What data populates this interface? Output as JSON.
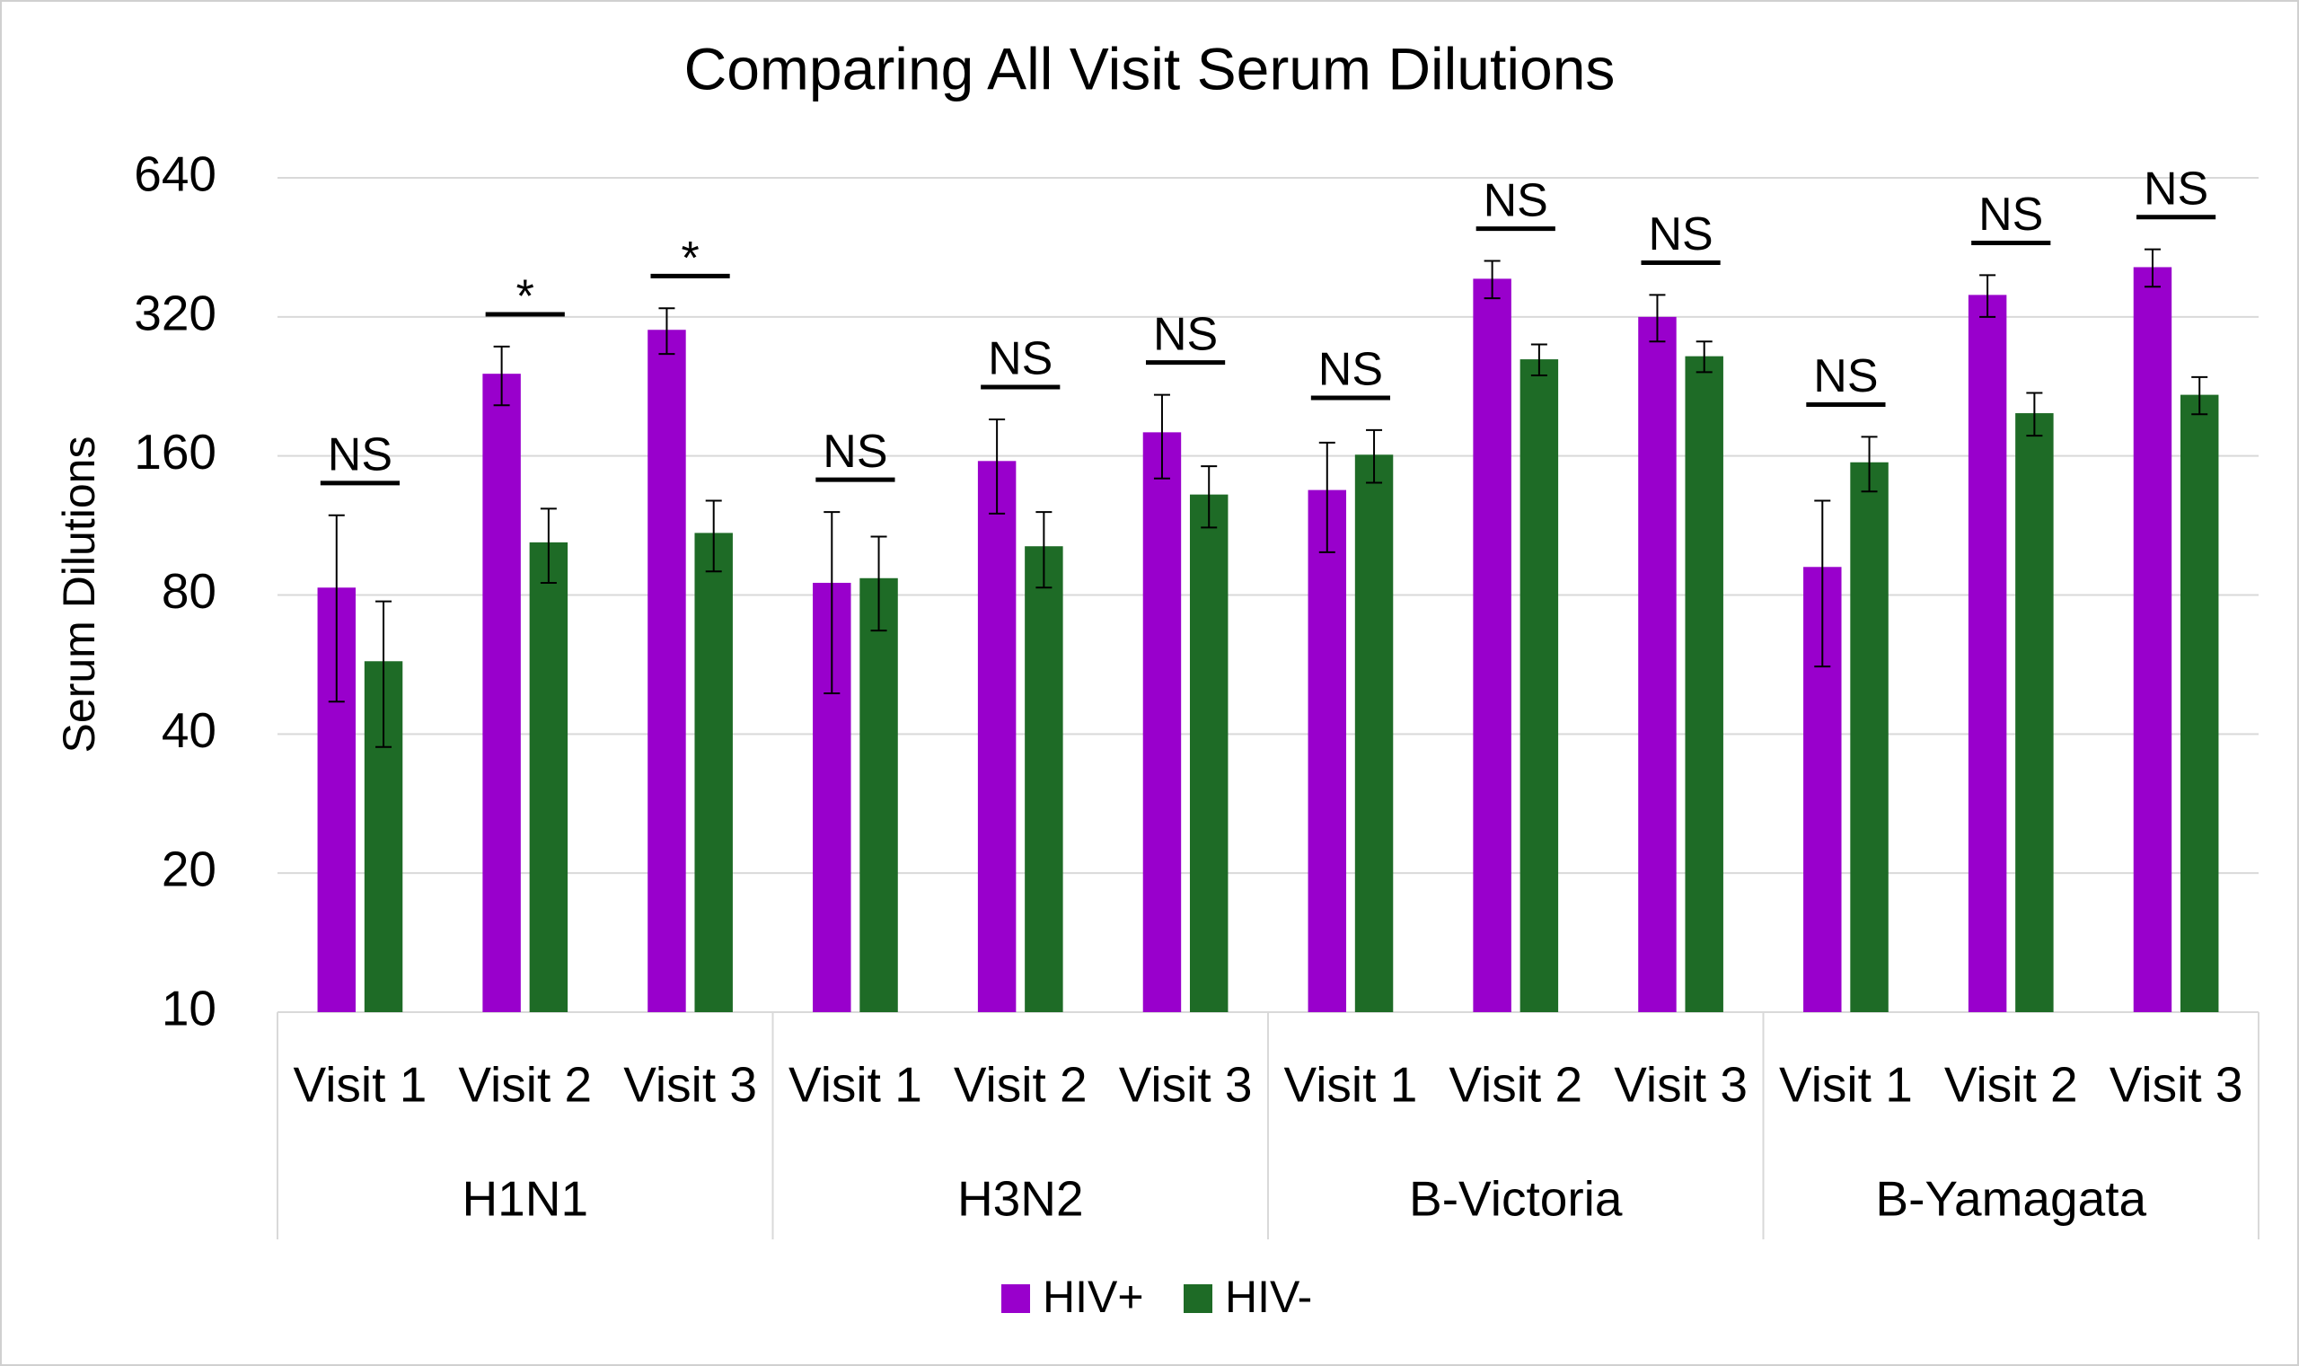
{
  "chart_data": {
    "type": "bar",
    "title": "Comparing All Visit Serum Dilutions",
    "ylabel": "Serum Dilutions",
    "categories": [
      "Visit 1",
      "Visit 2",
      "Visit 3",
      "Visit 1",
      "Visit 2",
      "Visit 3",
      "Visit 1",
      "Visit 2",
      "Visit 3",
      "Visit 1",
      "Visit 2",
      "Visit 3"
    ],
    "groups": [
      "H1N1",
      "H3N2",
      "B-Victoria",
      "B-Yamagata"
    ],
    "series": [
      {
        "name": "HIV+",
        "color": "#9900cc",
        "values": [
          83,
          241,
          300,
          85,
          156,
          180,
          135,
          387,
          320,
          92,
          357,
          410
        ],
        "errors": [
          36,
          35,
          34,
          36,
          36,
          37,
          36,
          36,
          37,
          36,
          37,
          38
        ]
      },
      {
        "name": "HIV-",
        "color": "#1e6b26",
        "values": [
          57.5,
          104,
          109,
          87,
          102,
          132,
          161,
          259,
          263,
          155,
          198,
          217
        ],
        "errors": [
          20,
          19,
          19,
          20,
          19,
          20,
          21,
          20,
          20,
          21,
          21,
          20
        ]
      }
    ],
    "annotations": [
      "NS",
      "*",
      "*",
      "NS",
      "NS",
      "NS",
      "NS",
      "NS",
      "NS",
      "NS",
      "NS",
      "NS"
    ],
    "log_scale": true,
    "ylim": [
      10,
      640
    ],
    "yticks": [
      10,
      20,
      40,
      80,
      160,
      320,
      640
    ],
    "grid": true,
    "legend": "bottom"
  }
}
